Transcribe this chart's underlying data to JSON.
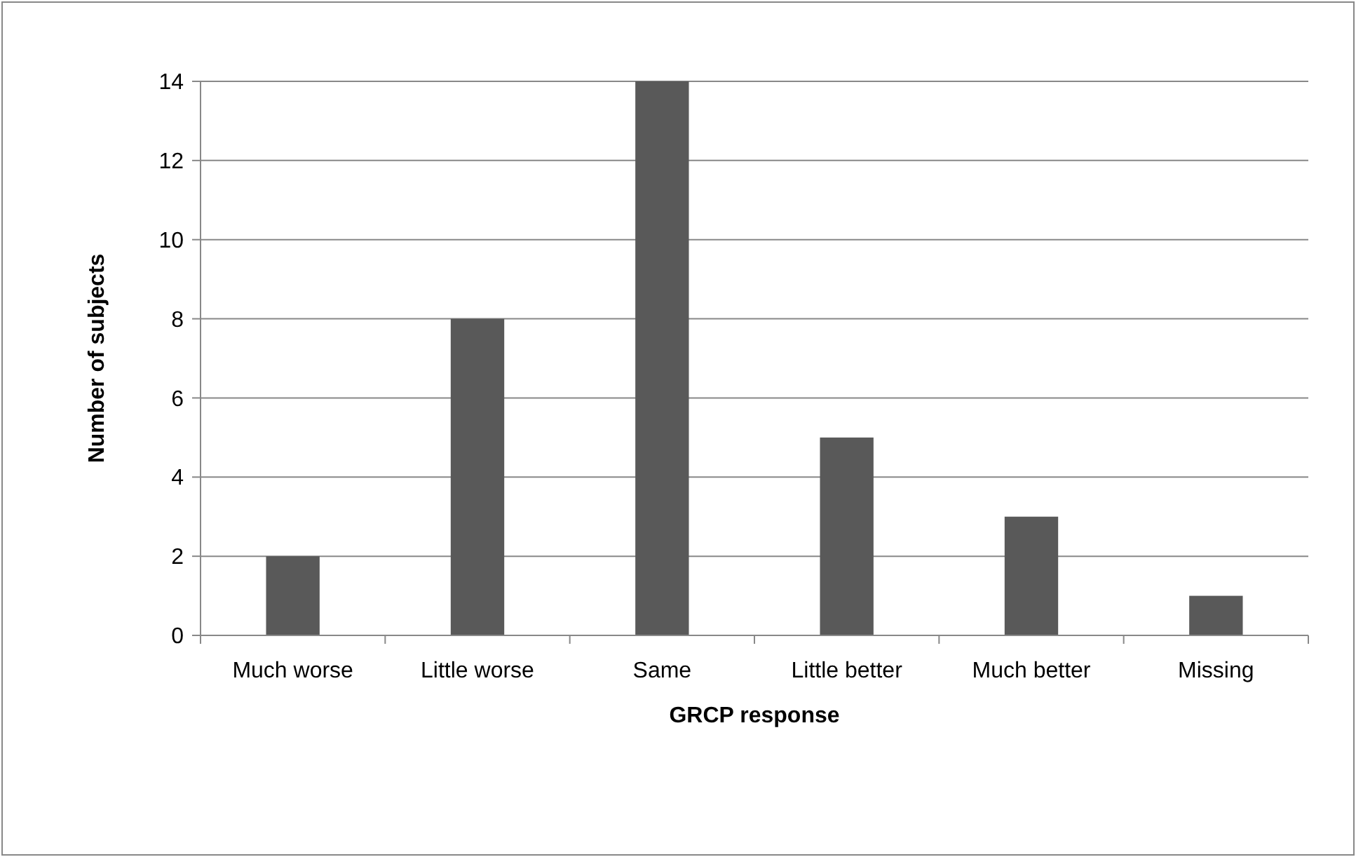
{
  "chart_data": {
    "type": "bar",
    "xlabel": "GRCP response",
    "ylabel": "Number of subjects",
    "categories": [
      "Much worse",
      "Little worse",
      "Same",
      "Little better",
      "Much better",
      "Missing"
    ],
    "values": [
      2,
      8,
      14,
      5,
      3,
      1
    ],
    "color": "#595959",
    "ylim": [
      0,
      14
    ],
    "yticks": [
      0,
      2,
      4,
      6,
      8,
      10,
      12,
      14
    ],
    "grid": "y"
  }
}
